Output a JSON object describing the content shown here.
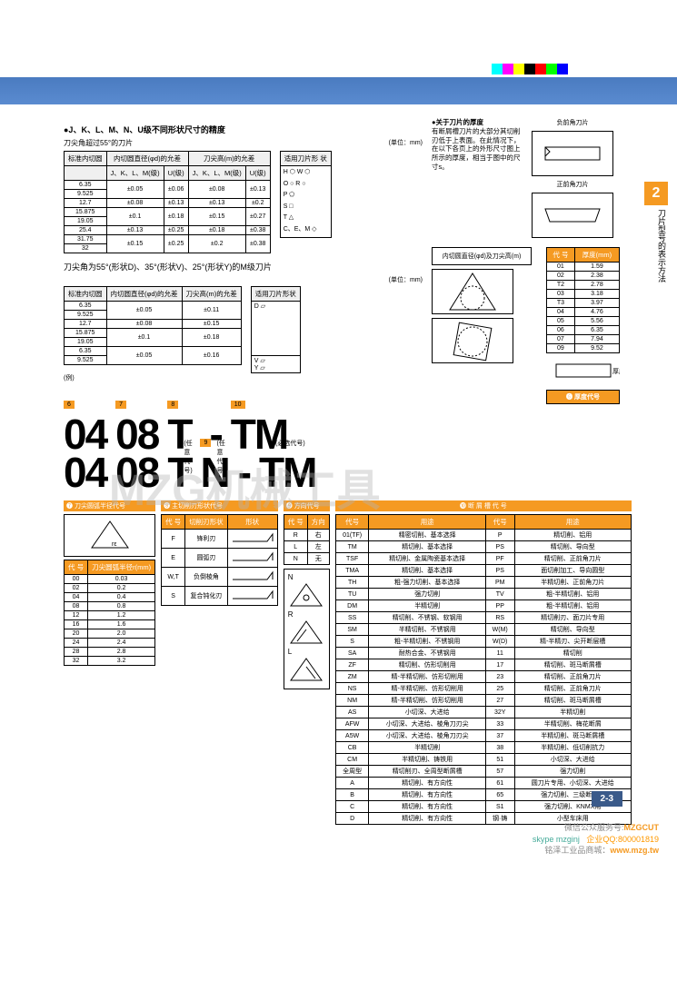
{
  "sideTab": "2",
  "sideText": "刀片型号的表示方法",
  "pageNum": "2-3",
  "watermark": "MZG机械工具",
  "section1": {
    "title": "●J、K、L、M、N、U级不同形状尺寸的精度",
    "sub": "刀尖角超过55°的刀片",
    "unit": "(单位：mm)",
    "hdr": [
      "标准内切圆",
      "内切圆直径(φd)的允差",
      "",
      "刀尖高(m)的允差",
      "",
      "适用刀片形  状"
    ],
    "subhdr": [
      "",
      "J、K、L、M(级)",
      "U(级)",
      "J、K、L、M(级)",
      "U(级)",
      ""
    ],
    "rows": [
      [
        "6.35",
        "±0.05",
        "±0.06",
        "±0.08",
        "±0.13"
      ],
      [
        "9.525",
        "",
        "",
        "",
        ""
      ],
      [
        "12.7",
        "±0.08",
        "±0.13",
        "±0.13",
        "±0.2"
      ],
      [
        "15.875",
        "±0.1",
        "±0.18",
        "±0.15",
        "±0.27"
      ],
      [
        "19.05",
        "",
        "",
        "",
        ""
      ],
      [
        "25.4",
        "±0.13",
        "±0.25",
        "±0.18",
        "±0.38"
      ],
      [
        "31.75",
        "±0.15",
        "±0.25",
        "±0.2",
        "±0.38"
      ],
      [
        "32",
        "",
        "",
        "",
        ""
      ]
    ],
    "shapes": [
      [
        "H",
        "⬡"
      ],
      [
        "O",
        "○"
      ],
      [
        "P",
        "⬠"
      ],
      [
        "S",
        "□"
      ],
      [
        "T",
        "△"
      ],
      [
        "C、E、M",
        "◇"
      ]
    ],
    "shapeLabels": [
      "W",
      "R",
      "",
      "",
      "",
      ""
    ]
  },
  "section2": {
    "title": "刀尖角为55°(形状D)、35°(形状V)、25°(形状Y)的M级刀片",
    "unit": "(单位：mm)",
    "hdr": [
      "标准内切圆",
      "内切圆直径(φd)的允差",
      "刀尖高(m)的允差",
      "适用刀片形状"
    ],
    "rows": [
      [
        "6.35",
        "±0.05",
        "±0.11",
        "D ▱"
      ],
      [
        "9.525",
        "",
        "",
        ""
      ],
      [
        "12.7",
        "±0.08",
        "±0.15",
        ""
      ],
      [
        "15.875",
        "±0.1",
        "±0.18",
        ""
      ],
      [
        "19.05",
        "",
        "",
        ""
      ],
      [
        "6.35",
        "±0.05",
        "±0.16",
        "V ▱"
      ],
      [
        "9.525",
        "",
        "",
        "Y ▱"
      ]
    ]
  },
  "rightNote": {
    "title": "●关于刀片的厚度",
    "text": "有断屑槽刀片的大部分其切削刃低于上表面。在此情况下，在以下各页上的外形尺寸图上所示的厚度，相当于图中的尺寸s。",
    "negLabel": "负前角刀片",
    "posLabel": "正前角刀片"
  },
  "innerDiag": "内切圆直径(φd)及刀尖高(m)",
  "thickTable": {
    "hdr": [
      "代 号",
      "厚度(mm)"
    ],
    "rows": [
      [
        "01",
        "1.59"
      ],
      [
        "02",
        "2.38"
      ],
      [
        "T2",
        "2.78"
      ],
      [
        "03",
        "3.18"
      ],
      [
        "T3",
        "3.97"
      ],
      [
        "04",
        "4.76"
      ],
      [
        "05",
        "5.56"
      ],
      [
        "06",
        "6.35"
      ],
      [
        "07",
        "7.94"
      ],
      [
        "09",
        "9.52"
      ]
    ],
    "title": "❻ 厚度代号"
  },
  "bigCodes": [
    {
      "tags": [
        "6",
        "7",
        "8",
        "",
        "",
        "10"
      ],
      "segs": [
        "04",
        "08",
        "T",
        "",
        "-",
        "TM"
      ]
    },
    {
      "tags": [
        "",
        "",
        "",
        "9",
        "",
        ""
      ],
      "segs": [
        "04",
        "08",
        "T",
        "N",
        "-",
        "TM"
      ],
      "opts": [
        "",
        "",
        "",
        "(任意代号)",
        "",
        "(任意代号)",
        "",
        "(必选代号)"
      ]
    }
  ],
  "t7": {
    "title": "❼ 刀尖圆弧半径代号",
    "hdr": [
      "代 号",
      "刀尖圆弧半径r(mm)"
    ],
    "rows": [
      [
        "00",
        "0.03"
      ],
      [
        "02",
        "0.2"
      ],
      [
        "04",
        "0.4"
      ],
      [
        "08",
        "0.8"
      ],
      [
        "12",
        "1.2"
      ],
      [
        "16",
        "1.6"
      ],
      [
        "20",
        "2.0"
      ],
      [
        "24",
        "2.4"
      ],
      [
        "28",
        "2.8"
      ],
      [
        "32",
        "3.2"
      ]
    ]
  },
  "t8": {
    "title": "❽ 主切削刃形状代号",
    "hdr": [
      "代 号",
      "切削刃形状",
      "形状"
    ],
    "rows": [
      [
        "F",
        "锋利刃",
        ""
      ],
      [
        "E",
        "圆弧刃",
        ""
      ],
      [
        "W,T",
        "负倒棱角",
        ""
      ],
      [
        "S",
        "复合钝化刃",
        ""
      ]
    ]
  },
  "t9": {
    "title": "❾ 方向代号",
    "hdr": [
      "代 号",
      "方向"
    ],
    "rows": [
      [
        "R",
        "右"
      ],
      [
        "L",
        "左"
      ],
      [
        "N",
        "无"
      ]
    ]
  },
  "t10": {
    "title": "❿ 断 屑 槽 代 号",
    "hdr": [
      "代号",
      "用途",
      "代号",
      "用途"
    ],
    "rows": [
      [
        "01(TF)",
        "精密切削、基本选择",
        "P",
        "精切削、铝用"
      ],
      [
        "TM",
        "精切削、基本选择",
        "PS",
        "精切削、导向型"
      ],
      [
        "TSF",
        "精切削、金属陶瓷基本选择",
        "PF",
        "精切削、正前角刀片"
      ],
      [
        "TMA",
        "精切削、基本选择",
        "PS",
        "面切削加工、导向圆型"
      ],
      [
        "TH",
        "粗-强力切削、基本选择",
        "PM",
        "半精切削、正前角刀片"
      ],
      [
        "TU",
        "强力切削",
        "TV",
        "粗-半精切削、铝用"
      ],
      [
        "DM",
        "半精切削",
        "PP",
        "粗-半精切削、铝用"
      ],
      [
        "SS",
        "精切削、不锈钢、软钢用",
        "RS",
        "精切削刃、面刀片专用"
      ],
      [
        "SM",
        "半精切削、不锈钢用",
        "W(M)",
        "精切削、导向型"
      ],
      [
        "S",
        "粗-半精切削、不锈钢用",
        "W(D)",
        "精-半精刃、尖开断层槽"
      ],
      [
        "SA",
        "耐热合金、不锈钢用",
        "11",
        "精切削"
      ],
      [
        "ZF",
        "精切削、仿形切削用",
        "17",
        "精切削、斑马断屑槽"
      ],
      [
        "ZM",
        "精-半精切削、仿形切削用",
        "23",
        "精切削、正前角刀片"
      ],
      [
        "NS",
        "精-半精切削、仿形切削用",
        "25",
        "精切削、正前角刀片"
      ],
      [
        "NM",
        "精-半精切削、仿形切削用",
        "27",
        "精切削、斑马断屑槽"
      ],
      [
        "AS",
        "小切深、大进给",
        "32Y",
        "半精切削"
      ],
      [
        "AFW",
        "小切深、大进给、棱角刀刃尖",
        "33",
        "半精切削、梅花断屑"
      ],
      [
        "A5W",
        "小切深、大进给、棱角刀刃尖",
        "37",
        "半精切削、斑马断屑槽"
      ],
      [
        "CB",
        "半精切削",
        "38",
        "半精切削、低切削抗力"
      ],
      [
        "CM",
        "半精切削、铸铁用",
        "51",
        "小切深、大进给"
      ],
      [
        "全周型",
        "精切削刃、全周型断屑槽",
        "57",
        "强力切削"
      ],
      [
        "A",
        "精切削、有方向性",
        "61",
        "圆刀片专用、小切深、大进给"
      ],
      [
        "B",
        "精切削、有方向性",
        "65",
        "强力切削、三级断屑槽"
      ],
      [
        "C",
        "精切削、有方向性",
        "S1",
        "强力切削、KNMX用"
      ],
      [
        "D",
        "精切削、有方向性",
        "钢·铸",
        "小型车床用"
      ]
    ]
  },
  "footer": {
    "wc": "微信公众服务号:",
    "mz": "MZGCUT",
    "sk": "skype mzginj",
    "qq": "企业QQ:",
    "qqn": "800001819",
    "shop": "铭泽工业品商城：",
    "url": "www.mzg.tw"
  },
  "diagThick": "厚度"
}
